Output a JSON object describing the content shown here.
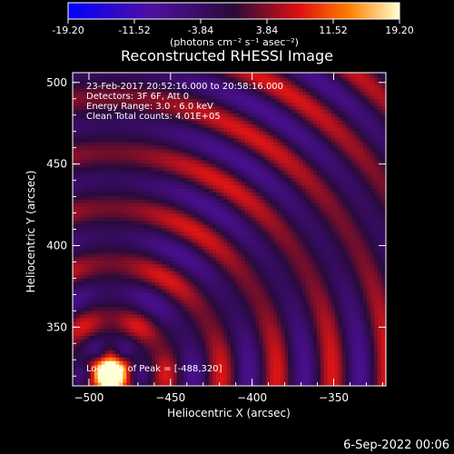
{
  "chart_data": {
    "type": "heatmap",
    "title": "Reconstructed RHESSI Image",
    "xlabel": "Heliocentric X (arcsec)",
    "ylabel": "Heliocentric Y (arcsec)",
    "xlim": [
      -510,
      -318
    ],
    "ylim": [
      314,
      506
    ],
    "x_ticks": [
      -500,
      -450,
      -400,
      -350
    ],
    "y_ticks": [
      350,
      400,
      450,
      500
    ],
    "colorbar": {
      "range": [
        -19.2,
        19.2
      ],
      "ticks": [
        {
          "value": -19.2,
          "label": "-19.20"
        },
        {
          "value": -11.52,
          "label": "-11.52"
        },
        {
          "value": -3.84,
          "label": "-3.84"
        },
        {
          "value": 3.84,
          "label": "3.84"
        },
        {
          "value": 11.52,
          "label": "11.52"
        },
        {
          "value": 19.2,
          "label": "19.20"
        }
      ],
      "units": "(photons cm⁻² s⁻¹ asec⁻²)"
    },
    "annotations": [
      "23-Feb-2017 20:52:16.000 to 20:58:16.000",
      "Detectors: 3F 6F, Att 0",
      "Energy Range: 3.0 - 6.0 keV",
      "Clean     Total counts: 4.01E+05"
    ],
    "peak_label": "Location of Peak = [-488,320]",
    "peak": {
      "x": -488,
      "y": 320
    },
    "ring_period_arcsec": 34,
    "footer": "6-Sep-2022 00:06",
    "colors": {
      "background": "#000000",
      "text": "#ffffff"
    }
  }
}
